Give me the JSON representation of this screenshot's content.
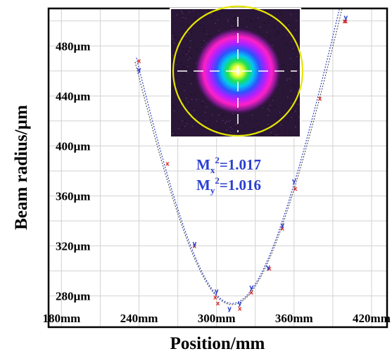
{
  "chart_data": {
    "type": "scatter",
    "title": "",
    "xlabel": "Position/mm",
    "ylabel": "Beam radius/µm",
    "xlim": [
      170,
      432
    ],
    "ylim": [
      255,
      510
    ],
    "x_ticks": [
      {
        "value": 180,
        "label": "180mm"
      },
      {
        "value": 240,
        "label": "240mm"
      },
      {
        "value": 300,
        "label": "300mm"
      },
      {
        "value": 360,
        "label": "360mm"
      },
      {
        "value": 420,
        "label": "420mm"
      }
    ],
    "y_ticks": [
      {
        "value": 280,
        "label": "280µm"
      },
      {
        "value": 320,
        "label": "320µm"
      },
      {
        "value": 360,
        "label": "360µm"
      },
      {
        "value": 400,
        "label": "400µm"
      },
      {
        "value": 440,
        "label": "440µm"
      },
      {
        "value": 480,
        "label": "480µm"
      }
    ],
    "grid": true,
    "series": [
      {
        "marker": "x",
        "color": "#d9302b",
        "points": [
          [
            240,
            468
          ],
          [
            262,
            386
          ],
          [
            283,
            320
          ],
          [
            299,
            279
          ],
          [
            301,
            274
          ],
          [
            318,
            270
          ],
          [
            327,
            283
          ],
          [
            341,
            302
          ],
          [
            351,
            334
          ],
          [
            361,
            366
          ],
          [
            380,
            438
          ],
          [
            399,
            500
          ],
          [
            400,
            500
          ]
        ]
      },
      {
        "marker": "y",
        "color": "#2b3fd0",
        "points": [
          [
            240,
            461
          ],
          [
            283,
            322
          ],
          [
            300,
            284
          ],
          [
            310,
            270
          ],
          [
            318,
            274
          ],
          [
            327,
            287
          ],
          [
            340,
            303
          ],
          [
            351,
            337
          ],
          [
            360,
            372
          ],
          [
            400,
            503
          ]
        ]
      }
    ],
    "fit_curves": [
      {
        "color": "#555555",
        "vertex_x": 312,
        "vertex_y": 273,
        "width": 54,
        "range": [
          237,
          405
        ]
      },
      {
        "color": "#2b3fd0",
        "vertex_x": 312,
        "vertex_y": 274,
        "width": 53,
        "range": [
          238,
          404
        ]
      }
    ],
    "annotation": {
      "mx_base": "M",
      "mx_sub": "x",
      "mx_sup": "2",
      "mx_value": "=1.017",
      "my_base": "M",
      "my_sub": "y",
      "my_sup": "2",
      "my_value": "=1.016",
      "color": "#2b3fd0"
    },
    "inset": {
      "description": "beam-profile-image",
      "ring_color": "#e6e600",
      "crosshair_color": "#ffffff"
    }
  }
}
